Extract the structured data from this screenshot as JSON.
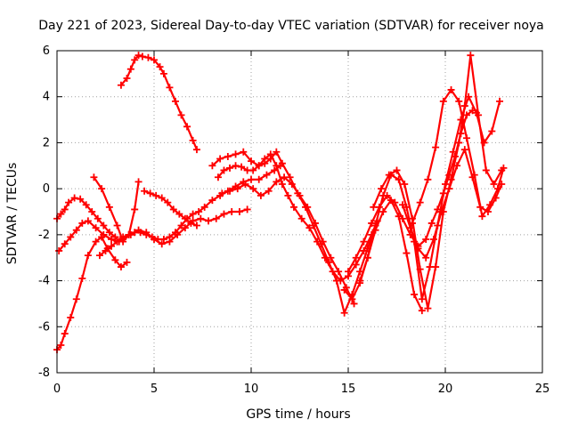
{
  "chart_data": {
    "type": "scatter",
    "title": "Day 221 of 2023, Sidereal Day-to-day VTEC variation (SDTVAR) for receiver noya",
    "xlabel": "GPS time / hours",
    "ylabel": "SDTVAR / TECUs",
    "xlim": [
      0,
      25
    ],
    "ylim": [
      -8,
      6
    ],
    "xticks": [
      "0",
      "5",
      "10",
      "15",
      "20",
      "25"
    ],
    "yticks": [
      "-8",
      "-6",
      "-4",
      "-2",
      "0",
      "2",
      "4",
      "6"
    ],
    "grid": true,
    "marker": "+",
    "color": "#ff0000",
    "series": [
      {
        "x": [
          3.3,
          3.6,
          3.8,
          4.0,
          4.2,
          4.4,
          4.7,
          5.0,
          5.3,
          5.5,
          5.8,
          6.1,
          6.4,
          6.7,
          7.0,
          7.2
        ],
        "y": [
          4.5,
          4.8,
          5.2,
          5.6,
          5.8,
          5.75,
          5.7,
          5.6,
          5.3,
          5.0,
          4.4,
          3.8,
          3.2,
          2.7,
          2.1,
          1.7
        ]
      },
      {
        "x": [
          0.0,
          0.2,
          0.4,
          0.7,
          1.0,
          1.3,
          1.6,
          2.0,
          2.3,
          2.6,
          3.0,
          3.3,
          3.6
        ],
        "y": [
          -7.0,
          -6.8,
          -6.3,
          -5.6,
          -4.8,
          -3.9,
          -2.9,
          -2.3,
          -2.1,
          -2.6,
          -3.1,
          -3.4,
          -3.2
        ]
      },
      {
        "x": [
          0.0,
          0.2,
          0.4,
          0.6,
          0.9,
          1.2,
          1.5,
          1.8,
          2.1,
          2.4,
          2.7,
          3.0,
          3.2
        ],
        "y": [
          -1.3,
          -1.1,
          -0.9,
          -0.6,
          -0.4,
          -0.45,
          -0.7,
          -1.0,
          -1.3,
          -1.6,
          -1.9,
          -2.1,
          -2.3
        ]
      },
      {
        "x": [
          0.1,
          0.4,
          0.7,
          1.0,
          1.3,
          1.6,
          2.0,
          2.4,
          2.8,
          3.1,
          3.4,
          3.8,
          4.2,
          4.6,
          5.0,
          5.4,
          5.8,
          6.2,
          6.6,
          7.0,
          7.4,
          7.8,
          8.2,
          8.6,
          9.0,
          9.4,
          9.8
        ],
        "y": [
          -2.7,
          -2.4,
          -2.1,
          -1.8,
          -1.5,
          -1.4,
          -1.7,
          -2.0,
          -2.2,
          -2.3,
          -2.2,
          -2.0,
          -1.8,
          -1.9,
          -2.2,
          -2.4,
          -2.3,
          -2.0,
          -1.7,
          -1.4,
          -1.3,
          -1.4,
          -1.3,
          -1.1,
          -1.0,
          -1.0,
          -0.9
        ]
      },
      {
        "x": [
          2.2,
          2.5,
          2.8,
          3.1,
          3.4,
          3.7,
          4.0,
          4.3,
          4.6,
          4.9,
          5.2,
          5.5,
          5.8,
          6.1,
          6.4,
          6.7,
          7.0,
          7.3,
          7.6,
          8.0,
          8.4,
          8.8,
          9.2,
          9.6,
          10.0,
          10.4,
          10.8,
          11.2,
          11.5
        ],
        "y": [
          -2.9,
          -2.7,
          -2.5,
          -2.3,
          -2.1,
          -2.0,
          -1.9,
          -1.9,
          -2.0,
          -2.1,
          -2.2,
          -2.2,
          -2.1,
          -1.9,
          -1.6,
          -1.3,
          -1.1,
          -1.0,
          -0.8,
          -0.5,
          -0.3,
          -0.1,
          0.1,
          0.3,
          0.4,
          0.4,
          0.6,
          0.8,
          1.0
        ]
      },
      {
        "x": [
          1.9,
          2.3,
          2.7,
          3.1,
          3.4,
          3.7,
          4.0,
          4.2
        ],
        "y": [
          0.5,
          0.0,
          -0.8,
          -1.6,
          -2.3,
          -2.0,
          -0.9,
          0.3
        ]
      },
      {
        "x": [
          4.5,
          4.8,
          5.1,
          5.4,
          5.7,
          6.0,
          6.3,
          6.6,
          6.9,
          7.2
        ],
        "y": [
          -0.1,
          -0.2,
          -0.3,
          -0.4,
          -0.6,
          -0.9,
          -1.1,
          -1.3,
          -1.5,
          -1.6
        ]
      },
      {
        "x": [
          8.3,
          8.6,
          8.9,
          9.2,
          9.5,
          9.8,
          10.1,
          10.4,
          10.7,
          11.0,
          11.3,
          11.6,
          11.9,
          12.2,
          12.6,
          13.0,
          13.4,
          13.8,
          14.2,
          14.6,
          15.0,
          15.4,
          15.8,
          16.2,
          16.5
        ],
        "y": [
          0.5,
          0.8,
          0.9,
          1.0,
          0.95,
          0.8,
          0.8,
          1.0,
          1.3,
          1.5,
          1.0,
          0.2,
          -0.3,
          -0.8,
          -1.3,
          -1.7,
          -2.3,
          -3.0,
          -3.6,
          -4.0,
          -3.8,
          -3.3,
          -2.7,
          -2.0,
          -1.4
        ]
      },
      {
        "x": [
          8.0,
          8.4,
          8.8,
          9.2,
          9.6,
          10.0,
          10.4,
          10.7,
          11.0,
          11.3,
          11.6,
          12.0,
          12.4,
          12.8,
          13.2,
          13.6,
          14.0,
          14.4,
          14.8,
          15.2,
          15.6,
          16.0,
          16.4
        ],
        "y": [
          1.0,
          1.3,
          1.4,
          1.5,
          1.6,
          1.2,
          1.0,
          1.1,
          1.3,
          1.6,
          1.1,
          0.5,
          -0.2,
          -0.8,
          -1.6,
          -2.4,
          -3.2,
          -4.0,
          -5.4,
          -4.6,
          -3.6,
          -2.6,
          -1.6
        ]
      },
      {
        "x": [
          8.5,
          8.9,
          9.3,
          9.7,
          10.1,
          10.5,
          10.9,
          11.3,
          11.7,
          12.1,
          12.5,
          12.9,
          13.3,
          13.7,
          14.1,
          14.5,
          14.9,
          15.3
        ],
        "y": [
          -0.2,
          -0.1,
          0.0,
          0.2,
          0.0,
          -0.3,
          -0.1,
          0.3,
          0.5,
          0.2,
          -0.3,
          -0.8,
          -1.5,
          -2.3,
          -3.0,
          -3.6,
          -4.3,
          -5.0
        ]
      },
      {
        "x": [
          15.0,
          15.4,
          15.8,
          16.2,
          16.6,
          17.0,
          17.4,
          17.8,
          18.2,
          18.6,
          19.0,
          19.3,
          19.6,
          19.9,
          20.2,
          20.5,
          20.8,
          21.1,
          21.4
        ],
        "y": [
          -3.6,
          -3.0,
          -2.3,
          -1.5,
          -0.8,
          -0.3,
          -0.6,
          -1.3,
          -2.0,
          -2.5,
          -2.2,
          -1.5,
          -0.9,
          -0.2,
          0.6,
          1.4,
          2.4,
          3.2,
          3.4
        ]
      },
      {
        "x": [
          15.6,
          16.0,
          16.4,
          16.8,
          17.2,
          17.6,
          18.0,
          18.4,
          18.8,
          19.2,
          19.6,
          20.0,
          20.4,
          20.8,
          21.2,
          21.6,
          22.0,
          22.4,
          22.8
        ],
        "y": [
          -4.0,
          -3.0,
          -1.6,
          -0.3,
          0.6,
          0.4,
          -0.8,
          -2.3,
          -4.8,
          -3.4,
          -1.6,
          0.2,
          1.6,
          3.0,
          4.0,
          3.3,
          2.0,
          2.5,
          3.8
        ]
      },
      {
        "x": [
          16.3,
          16.7,
          17.1,
          17.5,
          17.9,
          18.3,
          18.7,
          19.1,
          19.5,
          19.9,
          20.3,
          20.7,
          21.0,
          21.3,
          21.7,
          22.1,
          22.5,
          22.9
        ],
        "y": [
          -0.8,
          0.0,
          0.6,
          0.8,
          0.2,
          -1.3,
          -3.5,
          -5.2,
          -3.4,
          -1.0,
          0.4,
          2.0,
          3.6,
          5.8,
          3.2,
          0.8,
          0.2,
          0.8
        ]
      },
      {
        "x": [
          17.8,
          18.2,
          18.6,
          19.0,
          19.4,
          19.8,
          20.2,
          20.6,
          21.0,
          21.4,
          21.8,
          22.2,
          22.6,
          22.9
        ],
        "y": [
          -0.7,
          -1.7,
          -2.6,
          -3.0,
          -2.2,
          -1.0,
          0.0,
          1.0,
          1.7,
          0.5,
          -0.8,
          -1.0,
          -0.4,
          0.2
        ]
      },
      {
        "x": [
          18.3,
          18.7,
          19.1,
          19.5,
          19.9,
          20.3,
          20.7,
          21.1,
          21.5,
          21.9,
          22.3,
          22.7,
          23.0
        ],
        "y": [
          -1.5,
          -0.6,
          0.4,
          1.8,
          3.8,
          4.3,
          3.8,
          2.2,
          0.6,
          -1.2,
          -0.7,
          0.0,
          0.9
        ]
      },
      {
        "x": [
          14.8,
          15.2,
          15.6,
          16.0,
          16.4,
          16.8,
          17.2,
          17.6,
          18.0,
          18.4,
          18.8
        ],
        "y": [
          -4.4,
          -4.8,
          -4.1,
          -3.0,
          -1.8,
          -1.0,
          -0.5,
          -1.2,
          -2.8,
          -4.6,
          -5.3
        ]
      }
    ]
  }
}
